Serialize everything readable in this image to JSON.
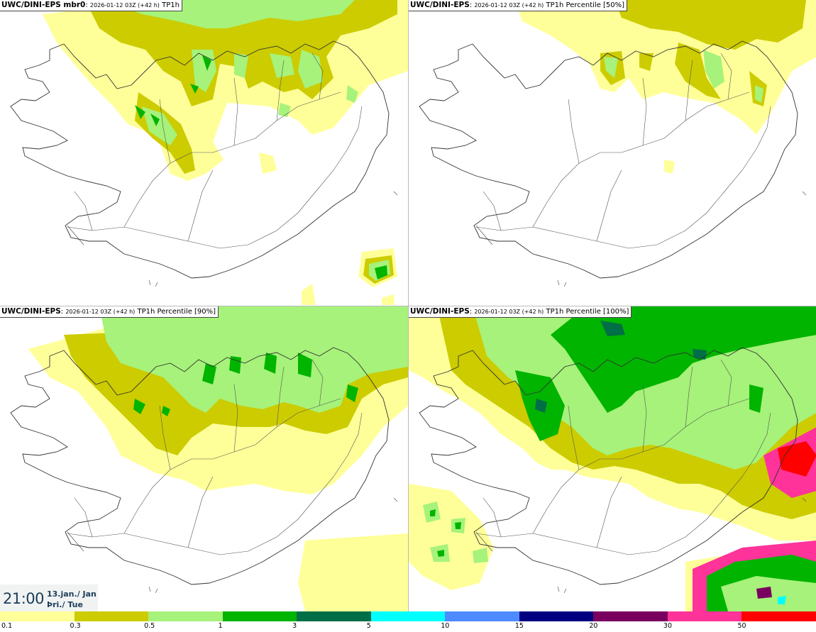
{
  "panels": [
    {
      "model": "UWC/DINI-EPS mbr0",
      "run": "2026-01-12 03Z (+42 h)",
      "field": "TP1h"
    },
    {
      "model": "UWC/DINI-EPS",
      "run": "2026-01-12 03Z (+42 h)",
      "field": "TP1h Percentile [50%]"
    },
    {
      "model": "UWC/DINI-EPS",
      "run": "2026-01-12 03Z (+42 h)",
      "field": "TP1h Percentile [90%]"
    },
    {
      "model": "UWC/DINI-EPS",
      "run": "2026-01-12 03Z (+42 h)",
      "field": "TP1h Percentile [100%]"
    }
  ],
  "valid_time": {
    "time": "21:00",
    "date_line1": "13.jan./ Jan",
    "date_line2": "Þri./ Tue"
  },
  "legend": {
    "colors": [
      "#ffff99",
      "#cccc00",
      "#a6f27a",
      "#00b400",
      "#006e46",
      "#00ffff",
      "#4d8bff",
      "#000080",
      "#7a0060",
      "#ff3399",
      "#ff0000"
    ],
    "labels": [
      "0.1",
      "0.3",
      "0.5",
      "1",
      "3",
      "5",
      "10",
      "15",
      "20",
      "30",
      "50"
    ]
  },
  "map_colors": {
    "c1": "#ffff99",
    "c2": "#cccc00",
    "c3": "#a6f27a",
    "c4": "#00b400",
    "c5": "#006e46",
    "c6": "#00ffff",
    "c9": "#7a0060",
    "c10": "#ff3399",
    "c11": "#ff0000",
    "outline": "#333333"
  }
}
